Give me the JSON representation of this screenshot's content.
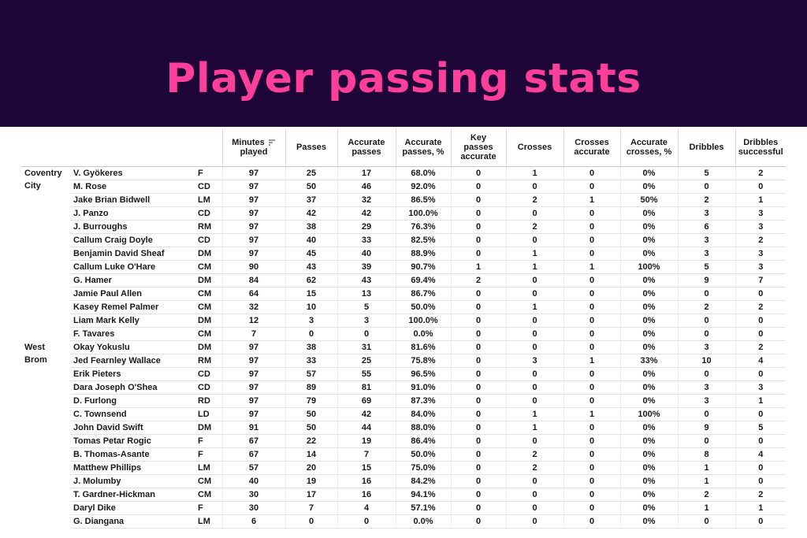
{
  "title": "Player passing stats",
  "chart_data": {
    "type": "table",
    "columns": [
      "Minutes played",
      "Passes",
      "Accurate passes",
      "Accurate passes, %",
      "Key passes accurate",
      "Crosses",
      "Crosses accurate",
      "Accurate crosses, %",
      "Dribbles",
      "Dribbles successful"
    ],
    "column_labels": [
      [
        "Minutes",
        "played"
      ],
      [
        "Passes"
      ],
      [
        "Accurate",
        "passes"
      ],
      [
        "Accurate",
        "passes, %"
      ],
      [
        "Key",
        "passes",
        "accurate"
      ],
      [
        "Crosses"
      ],
      [
        "Crosses",
        "accurate"
      ],
      [
        "Accurate",
        "crosses, %"
      ],
      [
        "Dribbles"
      ],
      [
        "Dribbles",
        "successful"
      ]
    ],
    "teams": [
      {
        "name": [
          "Coventry",
          "City"
        ],
        "players": [
          {
            "name": "V. Gyökeres",
            "pos": "F",
            "stats": [
              "97",
              "25",
              "17",
              "68.0%",
              "0",
              "1",
              "0",
              "0%",
              "5",
              "2"
            ]
          },
          {
            "name": "M. Rose",
            "pos": "CD",
            "stats": [
              "97",
              "50",
              "46",
              "92.0%",
              "0",
              "0",
              "0",
              "0%",
              "0",
              "0"
            ]
          },
          {
            "name": "Jake Brian Bidwell",
            "pos": "LM",
            "stats": [
              "97",
              "37",
              "32",
              "86.5%",
              "0",
              "2",
              "1",
              "50%",
              "2",
              "1"
            ]
          },
          {
            "name": "J. Panzo",
            "pos": "CD",
            "stats": [
              "97",
              "42",
              "42",
              "100.0%",
              "0",
              "0",
              "0",
              "0%",
              "3",
              "3"
            ]
          },
          {
            "name": "J. Burroughs",
            "pos": "RM",
            "stats": [
              "97",
              "38",
              "29",
              "76.3%",
              "0",
              "2",
              "0",
              "0%",
              "6",
              "3"
            ]
          },
          {
            "name": "Callum Craig Doyle",
            "pos": "CD",
            "stats": [
              "97",
              "40",
              "33",
              "82.5%",
              "0",
              "0",
              "0",
              "0%",
              "3",
              "2"
            ]
          },
          {
            "name": "Benjamin David Sheaf",
            "pos": "DM",
            "stats": [
              "97",
              "45",
              "40",
              "88.9%",
              "0",
              "1",
              "0",
              "0%",
              "3",
              "3"
            ]
          },
          {
            "name": "Callum Luke O'Hare",
            "pos": "CM",
            "stats": [
              "90",
              "43",
              "39",
              "90.7%",
              "1",
              "1",
              "1",
              "100%",
              "5",
              "3"
            ]
          },
          {
            "name": "G. Hamer",
            "pos": "DM",
            "stats": [
              "84",
              "62",
              "43",
              "69.4%",
              "2",
              "0",
              "0",
              "0%",
              "9",
              "7"
            ]
          },
          {
            "name": "Jamie Paul Allen",
            "pos": "CM",
            "stats": [
              "64",
              "15",
              "13",
              "86.7%",
              "0",
              "0",
              "0",
              "0%",
              "0",
              "0"
            ]
          },
          {
            "name": "Kasey Remel Palmer",
            "pos": "CM",
            "stats": [
              "32",
              "10",
              "5",
              "50.0%",
              "0",
              "1",
              "0",
              "0%",
              "2",
              "2"
            ]
          },
          {
            "name": "Liam Mark Kelly",
            "pos": "DM",
            "stats": [
              "12",
              "3",
              "3",
              "100.0%",
              "0",
              "0",
              "0",
              "0%",
              "0",
              "0"
            ]
          },
          {
            "name": "F. Tavares",
            "pos": "CM",
            "stats": [
              "7",
              "0",
              "0",
              "0.0%",
              "0",
              "0",
              "0",
              "0%",
              "0",
              "0"
            ]
          }
        ]
      },
      {
        "name": [
          "West",
          "Brom"
        ],
        "players": [
          {
            "name": "Okay Yokuslu",
            "pos": "DM",
            "stats": [
              "97",
              "38",
              "31",
              "81.6%",
              "0",
              "0",
              "0",
              "0%",
              "3",
              "2"
            ]
          },
          {
            "name": "Jed Fearnley Wallace",
            "pos": "RM",
            "stats": [
              "97",
              "33",
              "25",
              "75.8%",
              "0",
              "3",
              "1",
              "33%",
              "10",
              "4"
            ]
          },
          {
            "name": "Erik Pieters",
            "pos": "CD",
            "stats": [
              "97",
              "57",
              "55",
              "96.5%",
              "0",
              "0",
              "0",
              "0%",
              "0",
              "0"
            ]
          },
          {
            "name": "Dara Joseph O'Shea",
            "pos": "CD",
            "stats": [
              "97",
              "89",
              "81",
              "91.0%",
              "0",
              "0",
              "0",
              "0%",
              "3",
              "3"
            ]
          },
          {
            "name": "D. Furlong",
            "pos": "RD",
            "stats": [
              "97",
              "79",
              "69",
              "87.3%",
              "0",
              "0",
              "0",
              "0%",
              "3",
              "1"
            ]
          },
          {
            "name": "C. Townsend",
            "pos": "LD",
            "stats": [
              "97",
              "50",
              "42",
              "84.0%",
              "0",
              "1",
              "1",
              "100%",
              "0",
              "0"
            ]
          },
          {
            "name": "John David Swift",
            "pos": "DM",
            "stats": [
              "91",
              "50",
              "44",
              "88.0%",
              "0",
              "1",
              "0",
              "0%",
              "9",
              "5"
            ]
          },
          {
            "name": "Tomas Petar Rogic",
            "pos": "F",
            "stats": [
              "67",
              "22",
              "19",
              "86.4%",
              "0",
              "0",
              "0",
              "0%",
              "0",
              "0"
            ]
          },
          {
            "name": "B. Thomas-Asante",
            "pos": "F",
            "stats": [
              "67",
              "14",
              "7",
              "50.0%",
              "0",
              "2",
              "0",
              "0%",
              "8",
              "4"
            ]
          },
          {
            "name": "Matthew Phillips",
            "pos": "LM",
            "stats": [
              "57",
              "20",
              "15",
              "75.0%",
              "0",
              "2",
              "0",
              "0%",
              "1",
              "0"
            ]
          },
          {
            "name": "J. Molumby",
            "pos": "CM",
            "stats": [
              "40",
              "19",
              "16",
              "84.2%",
              "0",
              "0",
              "0",
              "0%",
              "1",
              "0"
            ]
          },
          {
            "name": "T. Gardner-Hickman",
            "pos": "CM",
            "stats": [
              "30",
              "17",
              "16",
              "94.1%",
              "0",
              "0",
              "0",
              "0%",
              "2",
              "2"
            ]
          },
          {
            "name": "Daryl Dike",
            "pos": "F",
            "stats": [
              "30",
              "7",
              "4",
              "57.1%",
              "0",
              "0",
              "0",
              "0%",
              "1",
              "1"
            ]
          },
          {
            "name": "G. Diangana",
            "pos": "LM",
            "stats": [
              "6",
              "0",
              "0",
              "0.0%",
              "0",
              "0",
              "0",
              "0%",
              "0",
              "0"
            ]
          }
        ]
      }
    ],
    "sorted_column": "Minutes played"
  },
  "colors": {
    "banner": "#1e0638",
    "title": "#ff3f9a"
  }
}
